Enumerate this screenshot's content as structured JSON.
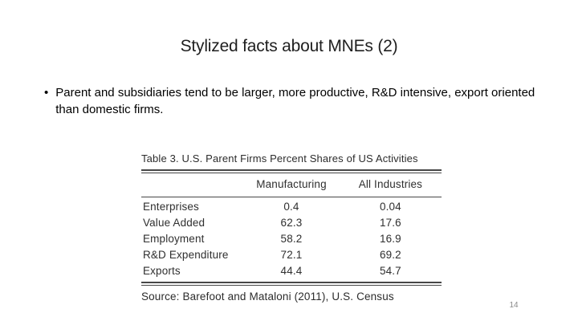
{
  "slide": {
    "title": "Stylized facts about MNEs (2)",
    "bullet_glyph": "•",
    "bullet": "Parent and subsidiaries tend to be larger, more productive, R&D intensive, export oriented than domestic firms."
  },
  "table": {
    "title": "Table 3. U.S. Parent Firms Percent Shares of US Activities",
    "columns": [
      "",
      "Manufacturing",
      "All Industries"
    ],
    "rows": [
      {
        "label": "Enterprises",
        "manufacturing": "0.4",
        "all_industries": "0.04"
      },
      {
        "label": "Value Added",
        "manufacturing": "62.3",
        "all_industries": "17.6"
      },
      {
        "label": "Employment",
        "manufacturing": "58.2",
        "all_industries": "16.9"
      },
      {
        "label": "R&D Expenditure",
        "manufacturing": "72.1",
        "all_industries": "69.2"
      },
      {
        "label": "Exports",
        "manufacturing": "44.4",
        "all_industries": "54.7"
      }
    ],
    "source": "Source: Barefoot and Mataloni (2011), U.S. Census"
  },
  "footer": {
    "page_number": "14"
  },
  "colors": {
    "background": "#ffffff",
    "title_text": "#1f1f1f",
    "body_text": "#000000",
    "table_text": "#2f2f2f",
    "table_rule": "#474747",
    "page_number_text": "#8a8a8a"
  }
}
